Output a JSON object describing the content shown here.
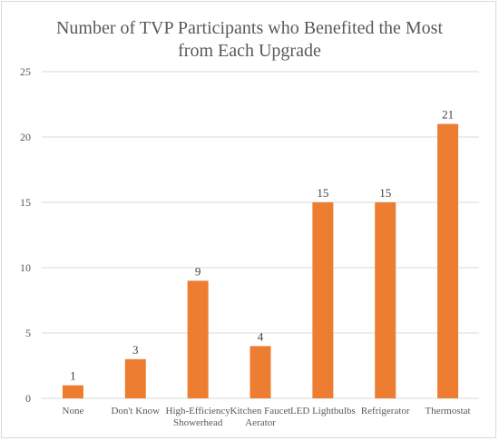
{
  "chart_data": {
    "type": "bar",
    "title": "Number of TVP Participants who Benefited the Most from Each Upgrade",
    "title_lines": [
      "Number of TVP Participants who Benefited the Most",
      "from Each Upgrade"
    ],
    "categories": [
      "None",
      "Don't Know",
      "High-Efficiency Showerhead",
      "Kitchen Faucet Aerator",
      "LED Lightbulbs",
      "Refrigerator",
      "Thermostat"
    ],
    "category_lines": [
      [
        "None"
      ],
      [
        "Don't Know"
      ],
      [
        "High-Efficiency",
        "Showerhead"
      ],
      [
        "Kitchen Faucet",
        "Aerator"
      ],
      [
        "LED Lightbulbs"
      ],
      [
        "Refrigerator"
      ],
      [
        "Thermostat"
      ]
    ],
    "values": [
      1,
      3,
      9,
      4,
      15,
      15,
      21
    ],
    "ylim": [
      0,
      25
    ],
    "yticks": [
      0,
      5,
      10,
      15,
      20,
      25
    ],
    "grid": true,
    "legend": "none",
    "bar_color": "#ed7d31",
    "grid_color": "#d9d9d9",
    "xlabel": "",
    "ylabel": ""
  }
}
